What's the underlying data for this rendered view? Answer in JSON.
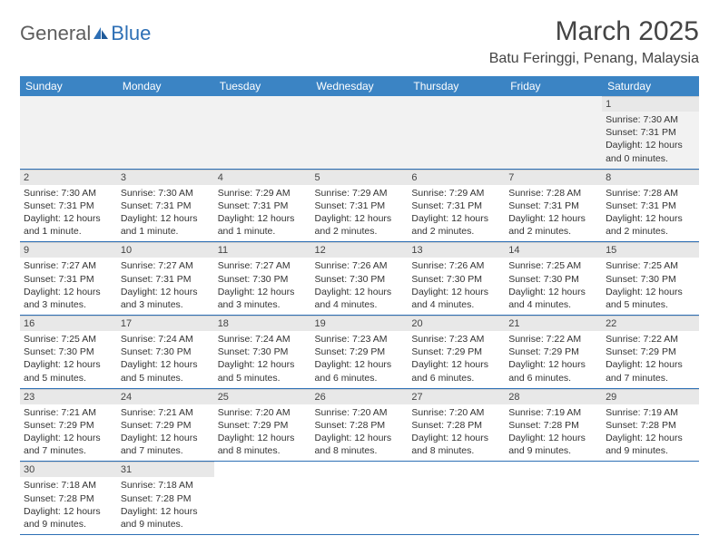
{
  "logo": {
    "text1": "General",
    "text2": "Blue"
  },
  "title": "March 2025",
  "location": "Batu Feringgi, Penang, Malaysia",
  "colors": {
    "header_bg": "#3b84c4",
    "header_text": "#ffffff",
    "rule": "#2d6fb5",
    "daynum_bg": "#e8e8e8",
    "logo_general": "#5e5e5e",
    "logo_blue": "#2d6fb5"
  },
  "weekdays": [
    "Sunday",
    "Monday",
    "Tuesday",
    "Wednesday",
    "Thursday",
    "Friday",
    "Saturday"
  ],
  "weeks": [
    [
      null,
      null,
      null,
      null,
      null,
      null,
      {
        "n": 1,
        "sr": "7:30 AM",
        "ss": "7:31 PM",
        "dl": "12 hours and 0 minutes."
      }
    ],
    [
      {
        "n": 2,
        "sr": "7:30 AM",
        "ss": "7:31 PM",
        "dl": "12 hours and 1 minute."
      },
      {
        "n": 3,
        "sr": "7:30 AM",
        "ss": "7:31 PM",
        "dl": "12 hours and 1 minute."
      },
      {
        "n": 4,
        "sr": "7:29 AM",
        "ss": "7:31 PM",
        "dl": "12 hours and 1 minute."
      },
      {
        "n": 5,
        "sr": "7:29 AM",
        "ss": "7:31 PM",
        "dl": "12 hours and 2 minutes."
      },
      {
        "n": 6,
        "sr": "7:29 AM",
        "ss": "7:31 PM",
        "dl": "12 hours and 2 minutes."
      },
      {
        "n": 7,
        "sr": "7:28 AM",
        "ss": "7:31 PM",
        "dl": "12 hours and 2 minutes."
      },
      {
        "n": 8,
        "sr": "7:28 AM",
        "ss": "7:31 PM",
        "dl": "12 hours and 2 minutes."
      }
    ],
    [
      {
        "n": 9,
        "sr": "7:27 AM",
        "ss": "7:31 PM",
        "dl": "12 hours and 3 minutes."
      },
      {
        "n": 10,
        "sr": "7:27 AM",
        "ss": "7:31 PM",
        "dl": "12 hours and 3 minutes."
      },
      {
        "n": 11,
        "sr": "7:27 AM",
        "ss": "7:30 PM",
        "dl": "12 hours and 3 minutes."
      },
      {
        "n": 12,
        "sr": "7:26 AM",
        "ss": "7:30 PM",
        "dl": "12 hours and 4 minutes."
      },
      {
        "n": 13,
        "sr": "7:26 AM",
        "ss": "7:30 PM",
        "dl": "12 hours and 4 minutes."
      },
      {
        "n": 14,
        "sr": "7:25 AM",
        "ss": "7:30 PM",
        "dl": "12 hours and 4 minutes."
      },
      {
        "n": 15,
        "sr": "7:25 AM",
        "ss": "7:30 PM",
        "dl": "12 hours and 5 minutes."
      }
    ],
    [
      {
        "n": 16,
        "sr": "7:25 AM",
        "ss": "7:30 PM",
        "dl": "12 hours and 5 minutes."
      },
      {
        "n": 17,
        "sr": "7:24 AM",
        "ss": "7:30 PM",
        "dl": "12 hours and 5 minutes."
      },
      {
        "n": 18,
        "sr": "7:24 AM",
        "ss": "7:30 PM",
        "dl": "12 hours and 5 minutes."
      },
      {
        "n": 19,
        "sr": "7:23 AM",
        "ss": "7:29 PM",
        "dl": "12 hours and 6 minutes."
      },
      {
        "n": 20,
        "sr": "7:23 AM",
        "ss": "7:29 PM",
        "dl": "12 hours and 6 minutes."
      },
      {
        "n": 21,
        "sr": "7:22 AM",
        "ss": "7:29 PM",
        "dl": "12 hours and 6 minutes."
      },
      {
        "n": 22,
        "sr": "7:22 AM",
        "ss": "7:29 PM",
        "dl": "12 hours and 7 minutes."
      }
    ],
    [
      {
        "n": 23,
        "sr": "7:21 AM",
        "ss": "7:29 PM",
        "dl": "12 hours and 7 minutes."
      },
      {
        "n": 24,
        "sr": "7:21 AM",
        "ss": "7:29 PM",
        "dl": "12 hours and 7 minutes."
      },
      {
        "n": 25,
        "sr": "7:20 AM",
        "ss": "7:29 PM",
        "dl": "12 hours and 8 minutes."
      },
      {
        "n": 26,
        "sr": "7:20 AM",
        "ss": "7:28 PM",
        "dl": "12 hours and 8 minutes."
      },
      {
        "n": 27,
        "sr": "7:20 AM",
        "ss": "7:28 PM",
        "dl": "12 hours and 8 minutes."
      },
      {
        "n": 28,
        "sr": "7:19 AM",
        "ss": "7:28 PM",
        "dl": "12 hours and 9 minutes."
      },
      {
        "n": 29,
        "sr": "7:19 AM",
        "ss": "7:28 PM",
        "dl": "12 hours and 9 minutes."
      }
    ],
    [
      {
        "n": 30,
        "sr": "7:18 AM",
        "ss": "7:28 PM",
        "dl": "12 hours and 9 minutes."
      },
      {
        "n": 31,
        "sr": "7:18 AM",
        "ss": "7:28 PM",
        "dl": "12 hours and 9 minutes."
      },
      null,
      null,
      null,
      null,
      null
    ]
  ],
  "labels": {
    "sunrise": "Sunrise:",
    "sunset": "Sunset:",
    "daylight": "Daylight:"
  }
}
